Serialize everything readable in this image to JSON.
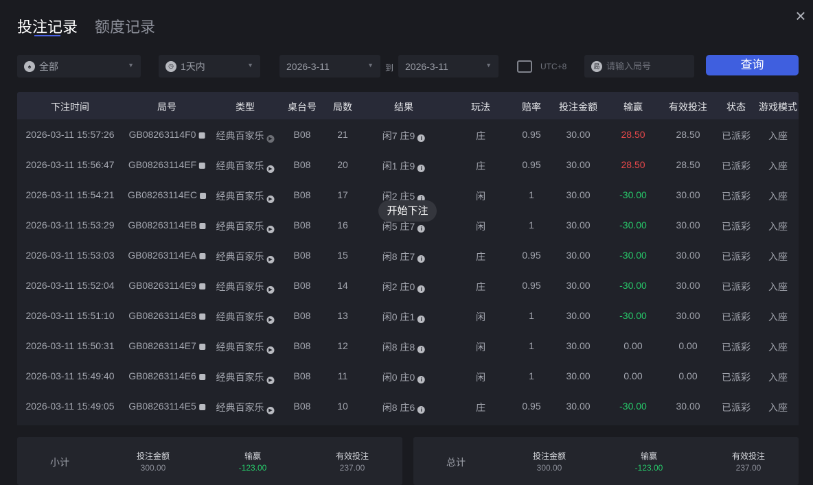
{
  "tabs": [
    "投注记录",
    "额度记录"
  ],
  "filters": {
    "game": "全部",
    "range": "1天内",
    "date_from": "2026-3-11",
    "to_label": "到",
    "date_to": "2026-3-11",
    "timezone": "UTC+8",
    "round_placeholder": "请输入局号",
    "round_icon_label": "局",
    "query": "查询"
  },
  "columns": [
    "下注时间",
    "局号",
    "类型",
    "桌台号",
    "局数",
    "结果",
    "玩法",
    "赔率",
    "投注金额",
    "输赢",
    "有效投注",
    "状态",
    "游戏模式"
  ],
  "rows": [
    {
      "time": "2026-03-11 15:57:26",
      "round": "GB08263114F0",
      "type": "经典百家乐",
      "table": "B08",
      "num": "21",
      "result": "闲7 庄9",
      "play": "庄",
      "odds": "0.95",
      "amount": "30.00",
      "win": "28.50",
      "valid": "28.50",
      "status": "已派彩",
      "mode": "入座",
      "win_color": "red"
    },
    {
      "time": "2026-03-11 15:56:47",
      "round": "GB08263114EF",
      "type": "经典百家乐",
      "table": "B08",
      "num": "20",
      "result": "闲1 庄9",
      "play": "庄",
      "odds": "0.95",
      "amount": "30.00",
      "win": "28.50",
      "valid": "28.50",
      "status": "已派彩",
      "mode": "入座",
      "win_color": "red"
    },
    {
      "time": "2026-03-11 15:54:21",
      "round": "GB08263114EC",
      "type": "经典百家乐",
      "table": "B08",
      "num": "17",
      "result": "闲2 庄5",
      "play": "闲",
      "odds": "1",
      "amount": "30.00",
      "win": "-30.00",
      "valid": "30.00",
      "status": "已派彩",
      "mode": "入座",
      "win_color": "green"
    },
    {
      "time": "2026-03-11 15:53:29",
      "round": "GB08263114EB",
      "type": "经典百家乐",
      "table": "B08",
      "num": "16",
      "result": "闲5 庄7",
      "play": "闲",
      "odds": "1",
      "amount": "30.00",
      "win": "-30.00",
      "valid": "30.00",
      "status": "已派彩",
      "mode": "入座",
      "win_color": "green"
    },
    {
      "time": "2026-03-11 15:53:03",
      "round": "GB08263114EA",
      "type": "经典百家乐",
      "table": "B08",
      "num": "15",
      "result": "闲8 庄7",
      "play": "庄",
      "odds": "0.95",
      "amount": "30.00",
      "win": "-30.00",
      "valid": "30.00",
      "status": "已派彩",
      "mode": "入座",
      "win_color": "green"
    },
    {
      "time": "2026-03-11 15:52:04",
      "round": "GB08263114E9",
      "type": "经典百家乐",
      "table": "B08",
      "num": "14",
      "result": "闲2 庄0",
      "play": "庄",
      "odds": "0.95",
      "amount": "30.00",
      "win": "-30.00",
      "valid": "30.00",
      "status": "已派彩",
      "mode": "入座",
      "win_color": "green"
    },
    {
      "time": "2026-03-11 15:51:10",
      "round": "GB08263114E8",
      "type": "经典百家乐",
      "table": "B08",
      "num": "13",
      "result": "闲0 庄1",
      "play": "闲",
      "odds": "1",
      "amount": "30.00",
      "win": "-30.00",
      "valid": "30.00",
      "status": "已派彩",
      "mode": "入座",
      "win_color": "green"
    },
    {
      "time": "2026-03-11 15:50:31",
      "round": "GB08263114E7",
      "type": "经典百家乐",
      "table": "B08",
      "num": "12",
      "result": "闲8 庄8",
      "play": "闲",
      "odds": "1",
      "amount": "30.00",
      "win": "0.00",
      "valid": "0.00",
      "status": "已派彩",
      "mode": "入座",
      "win_color": "neutral"
    },
    {
      "time": "2026-03-11 15:49:40",
      "round": "GB08263114E6",
      "type": "经典百家乐",
      "table": "B08",
      "num": "11",
      "result": "闲0 庄0",
      "play": "闲",
      "odds": "1",
      "amount": "30.00",
      "win": "0.00",
      "valid": "0.00",
      "status": "已派彩",
      "mode": "入座",
      "win_color": "neutral"
    },
    {
      "time": "2026-03-11 15:49:05",
      "round": "GB08263114E5",
      "type": "经典百家乐",
      "table": "B08",
      "num": "10",
      "result": "闲8 庄6",
      "play": "庄",
      "odds": "0.95",
      "amount": "30.00",
      "win": "-30.00",
      "valid": "30.00",
      "status": "已派彩",
      "mode": "入座",
      "win_color": "green"
    }
  ],
  "tooltip": "开始下注",
  "subtotal": {
    "label": "小计",
    "amount_label": "投注金额",
    "amount": "300.00",
    "win_label": "输赢",
    "win": "-123.00",
    "valid_label": "有效投注",
    "valid": "237.00"
  },
  "total": {
    "label": "总计",
    "amount_label": "投注金额",
    "amount": "300.00",
    "win_label": "输赢",
    "win": "-123.00",
    "valid_label": "有效投注",
    "valid": "237.00"
  },
  "colors": {
    "accent": "#3f5fdf",
    "loss": "#27c96a",
    "win": "#e8484a"
  }
}
